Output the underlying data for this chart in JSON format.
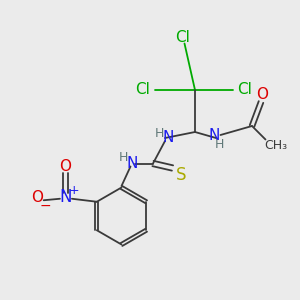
{
  "bg_color": "#ebebeb",
  "colors": {
    "bond": "#3a3a3a",
    "Cl": "#00aa00",
    "N": "#1a1aee",
    "O": "#dd0000",
    "S": "#aaaa00",
    "H": "#607878"
  },
  "layout": {
    "xlim": [
      0,
      10
    ],
    "ylim": [
      0,
      10
    ],
    "figsize": [
      3.0,
      3.0
    ],
    "dpi": 100
  },
  "font_sizes": {
    "main": 11,
    "small": 9,
    "nitro_label": 12
  }
}
